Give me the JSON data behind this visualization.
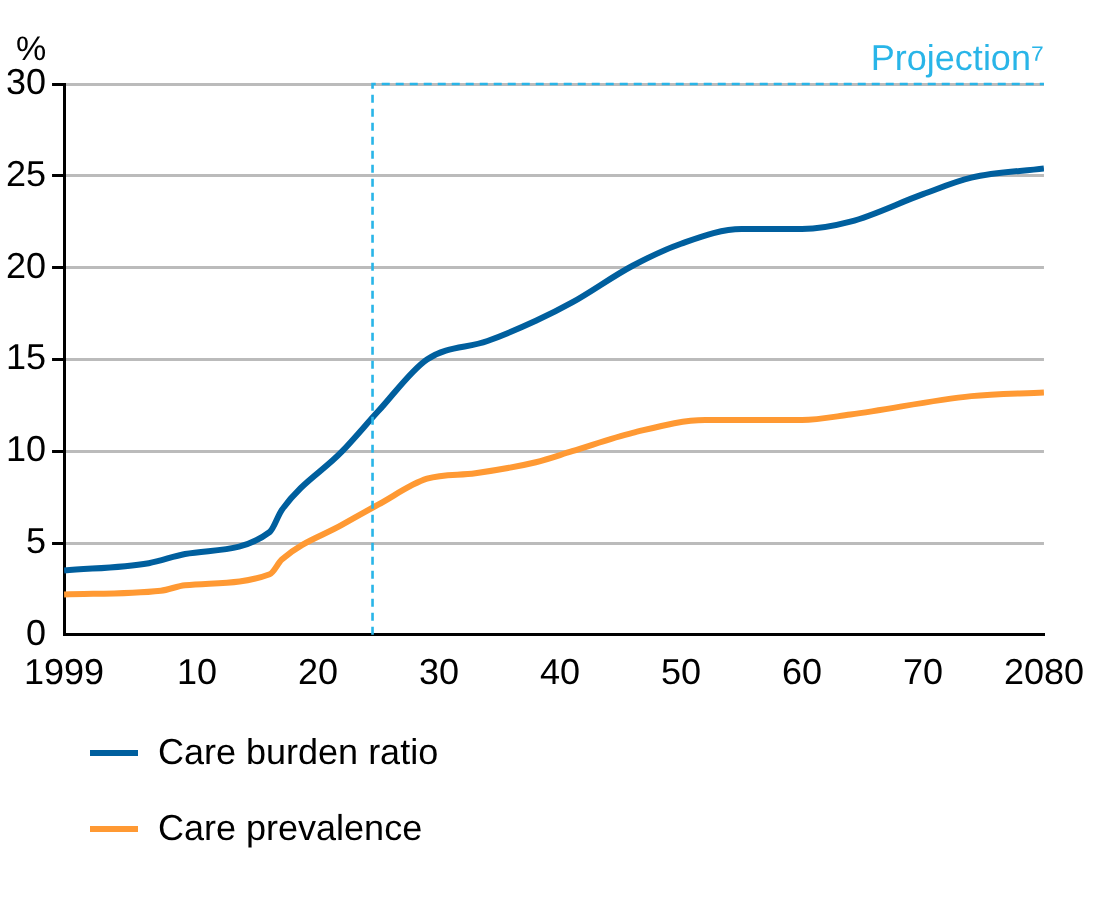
{
  "chart_data": {
    "type": "line",
    "ylabel": "%",
    "xlim": [
      1999,
      2080
    ],
    "xticks": [
      {
        "value": 1999,
        "label": "1999"
      },
      {
        "value": 2010,
        "label": "10"
      },
      {
        "value": 2020,
        "label": "20"
      },
      {
        "value": 2030,
        "label": "30"
      },
      {
        "value": 2040,
        "label": "40"
      },
      {
        "value": 2050,
        "label": "50"
      },
      {
        "value": 2060,
        "label": "60"
      },
      {
        "value": 2070,
        "label": "70"
      },
      {
        "value": 2080,
        "label": "2080"
      }
    ],
    "ylim": [
      0,
      30
    ],
    "yticks": [
      0,
      5,
      10,
      15,
      20,
      25,
      30
    ],
    "grid": "y",
    "legend": "bottom",
    "marker": "none",
    "line_style": "solid",
    "ref_lines": [
      {
        "axis": "x",
        "value": 2024.5,
        "label": "Projection⁷",
        "color": "#29b5e8",
        "line_style": "dashed"
      }
    ],
    "series": [
      {
        "name": "Care burden ratio",
        "color": "#005f9e",
        "x": [
          1999,
          2006,
          2009,
          2016,
          2017,
          2022,
          2025,
          2029,
          2034,
          2038,
          2041,
          2046,
          2050,
          2055,
          2060,
          2064,
          2070,
          2074,
          2080
        ],
        "values": [
          3.5,
          3.9,
          4.4,
          5.6,
          6.8,
          10,
          12.2,
          15,
          16,
          17.1,
          18.1,
          20.1,
          21.3,
          22.1,
          22.1,
          22.5,
          24,
          24.9,
          25.4
        ]
      },
      {
        "name": "Care prevalence",
        "color": "#ff9933",
        "x": [
          1999,
          2007,
          2009,
          2016,
          2017,
          2022,
          2025,
          2029,
          2033,
          2038,
          2041,
          2046,
          2052,
          2060,
          2064,
          2074,
          2080
        ],
        "values": [
          2.2,
          2.4,
          2.7,
          3.3,
          4.1,
          6,
          7.1,
          8.5,
          8.8,
          9.4,
          10,
          11,
          11.7,
          11.7,
          12,
          13,
          13.2
        ]
      }
    ]
  }
}
